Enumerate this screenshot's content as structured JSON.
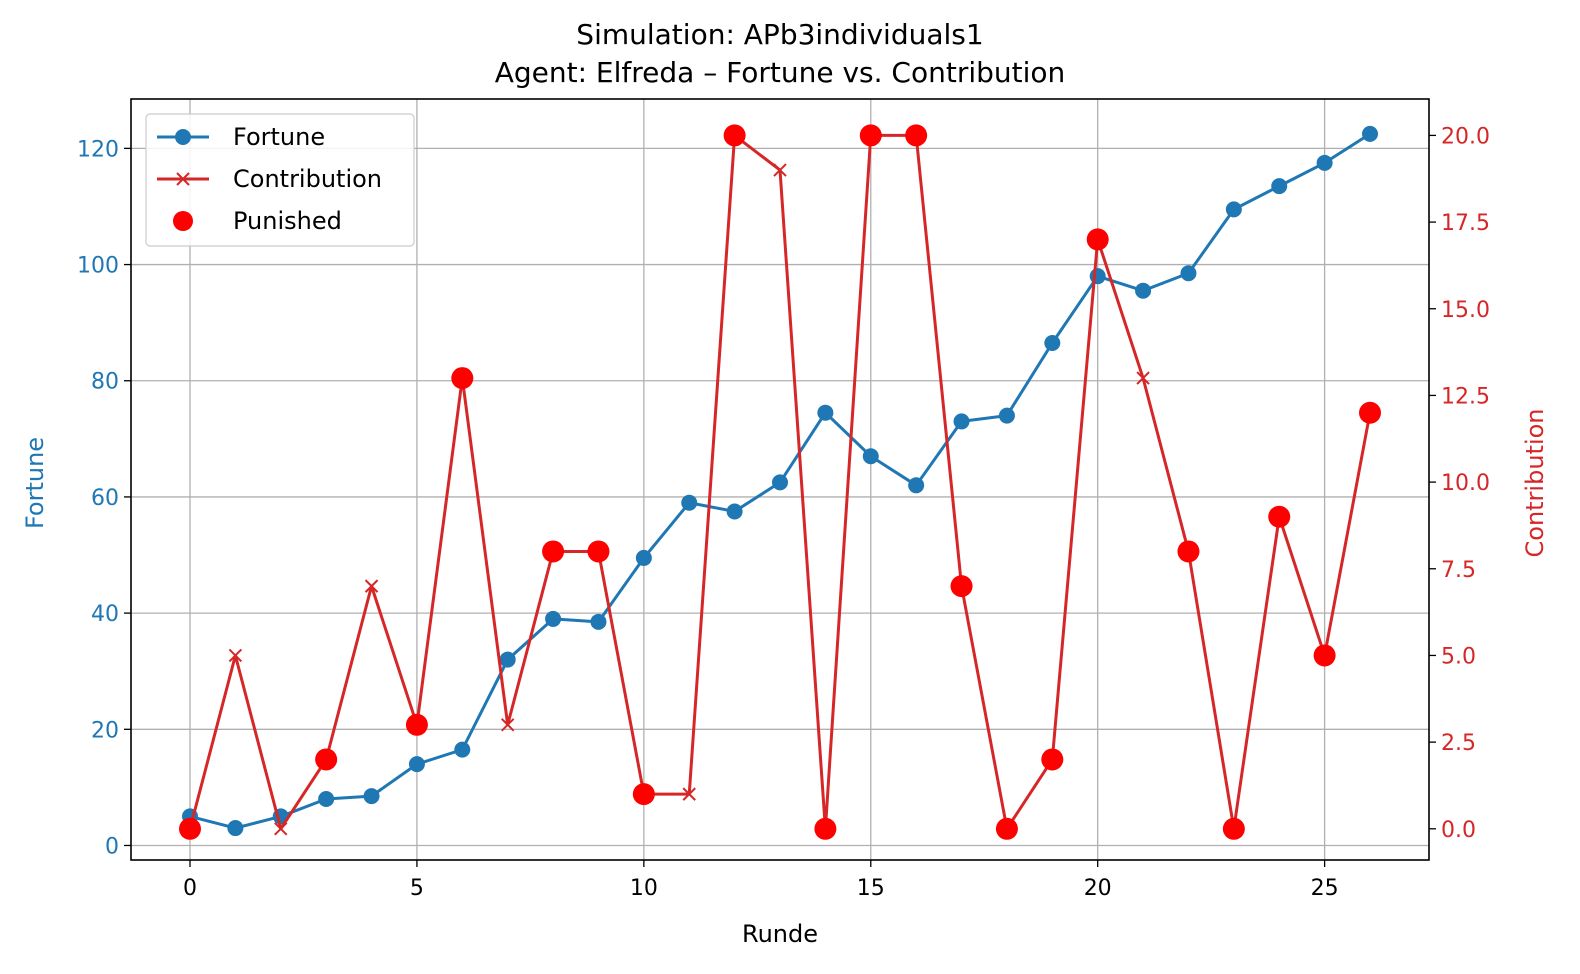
{
  "chart_data": {
    "type": "line",
    "title": "Simulation: APb3individuals1",
    "subtitle": "Agent: Elfreda – Fortune vs. Contribution",
    "xlabel": "Runde",
    "ylabel_left": "Fortune",
    "ylabel_right": "Contribution",
    "xlim": [
      -1.3,
      27.3
    ],
    "ylim_left": [
      -2.5,
      128.5
    ],
    "ylim_right": [
      -0.9,
      21.05
    ],
    "x_ticks": [
      "0",
      "5",
      "10",
      "15",
      "20",
      "25"
    ],
    "y_left_ticks": [
      "0",
      "20",
      "40",
      "60",
      "80",
      "100",
      "120"
    ],
    "y_right_ticks": [
      "0.0",
      "2.5",
      "5.0",
      "7.5",
      "10.0",
      "12.5",
      "15.0",
      "17.5",
      "20.0"
    ],
    "grid": true,
    "legend_position": "top-left",
    "colors": {
      "fortune": "#1f77b4",
      "contribution": "#d62728",
      "punished": "#ff0000"
    },
    "x": [
      0,
      1,
      2,
      3,
      4,
      5,
      6,
      7,
      8,
      9,
      10,
      11,
      12,
      13,
      14,
      15,
      16,
      17,
      18,
      19,
      20,
      21,
      22,
      23,
      24,
      25,
      26
    ],
    "series": [
      {
        "name": "Fortune",
        "axis": "left",
        "marker": "circle",
        "values": [
          5,
          3,
          5,
          8,
          8.5,
          14,
          16.5,
          32,
          39,
          38.5,
          49.5,
          59,
          57.5,
          62.5,
          74.5,
          67,
          62,
          73,
          74,
          86.5,
          98,
          95.5,
          98.5,
          109.5,
          113.5,
          117.5,
          122.5
        ]
      },
      {
        "name": "Contribution",
        "axis": "right",
        "marker": "x",
        "values": [
          0,
          5,
          0,
          2,
          7,
          3,
          13,
          3,
          8,
          8,
          1,
          1,
          20,
          19,
          0,
          20,
          20,
          7,
          0,
          2,
          17,
          13,
          8,
          0,
          9,
          5,
          12
        ]
      }
    ],
    "punished": {
      "name": "Punished",
      "axis": "right",
      "x": [
        0,
        3,
        5,
        6,
        8,
        9,
        10,
        12,
        14,
        15,
        16,
        17,
        18,
        19,
        20,
        22,
        23,
        24,
        25,
        26
      ],
      "values": [
        0,
        2,
        3,
        13,
        8,
        8,
        1,
        20,
        0,
        20,
        20,
        7,
        0,
        2,
        17,
        8,
        0,
        9,
        5,
        12
      ]
    }
  }
}
